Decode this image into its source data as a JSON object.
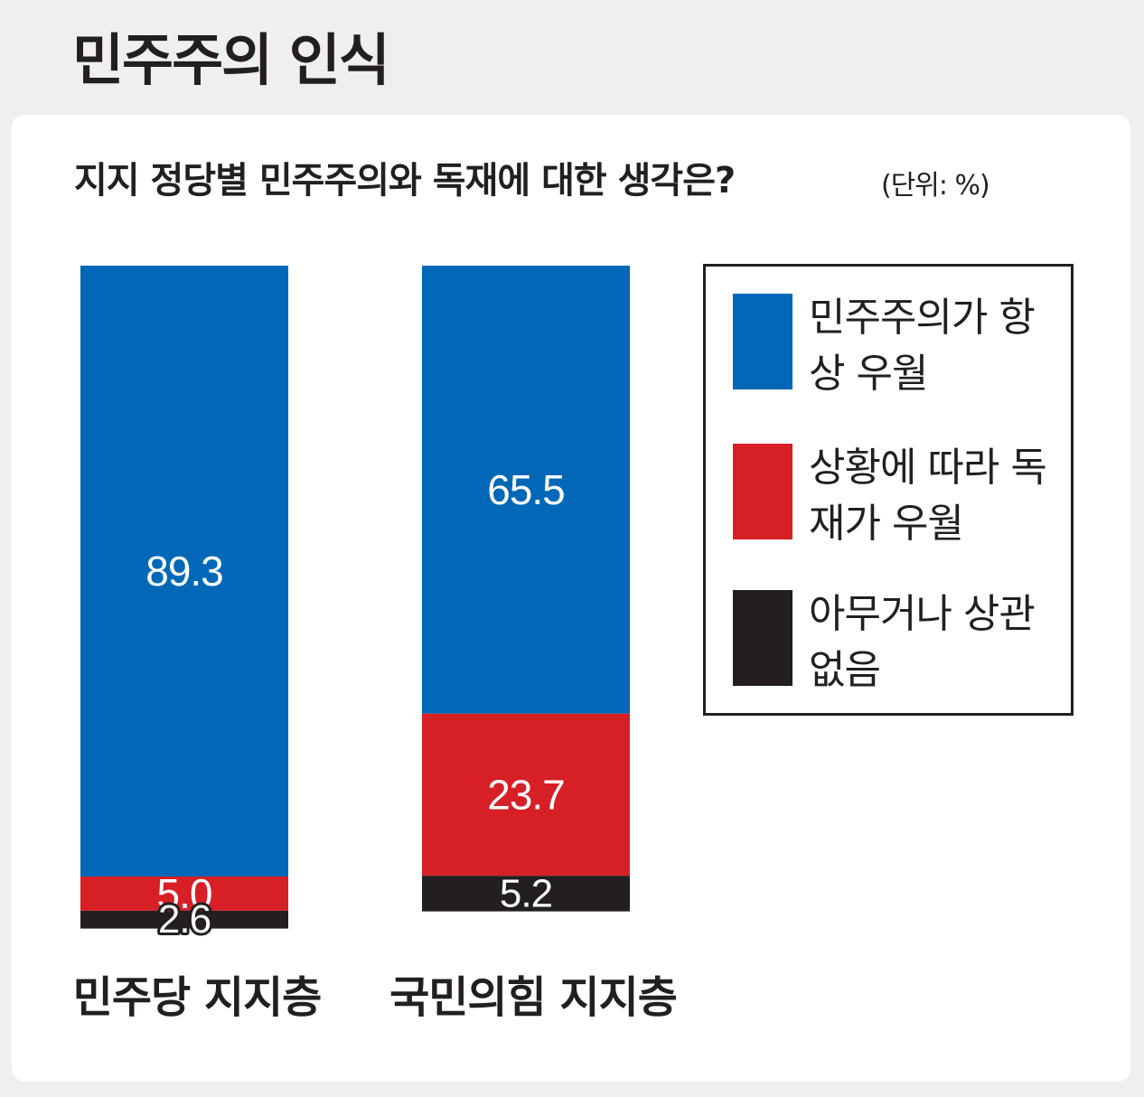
{
  "page_title": "민주주의 인식",
  "chart_data": {
    "type": "bar",
    "stacked": true,
    "title": "지지 정당별 민주주의와 독재에 대한 생각은?",
    "unit": "(단위: %)",
    "categories": [
      "민주당 지지층",
      "국민의힘 지지층"
    ],
    "series": [
      {
        "name": "민주주의가 항상 우월",
        "values": [
          89.3,
          65.5
        ],
        "color": "#0068b7"
      },
      {
        "name": "상황에 따라 독재가 우월",
        "values": [
          5.0,
          23.7
        ],
        "color": "#d71f26"
      },
      {
        "name": "아무거나 상관없음",
        "values": [
          2.6,
          5.2
        ],
        "color": "#231f20"
      }
    ],
    "value_labels": [
      [
        "89.3",
        "5.0",
        "2.6"
      ],
      [
        "65.5",
        "23.7",
        "5.2"
      ]
    ],
    "legend_position": "right",
    "grid": false
  }
}
